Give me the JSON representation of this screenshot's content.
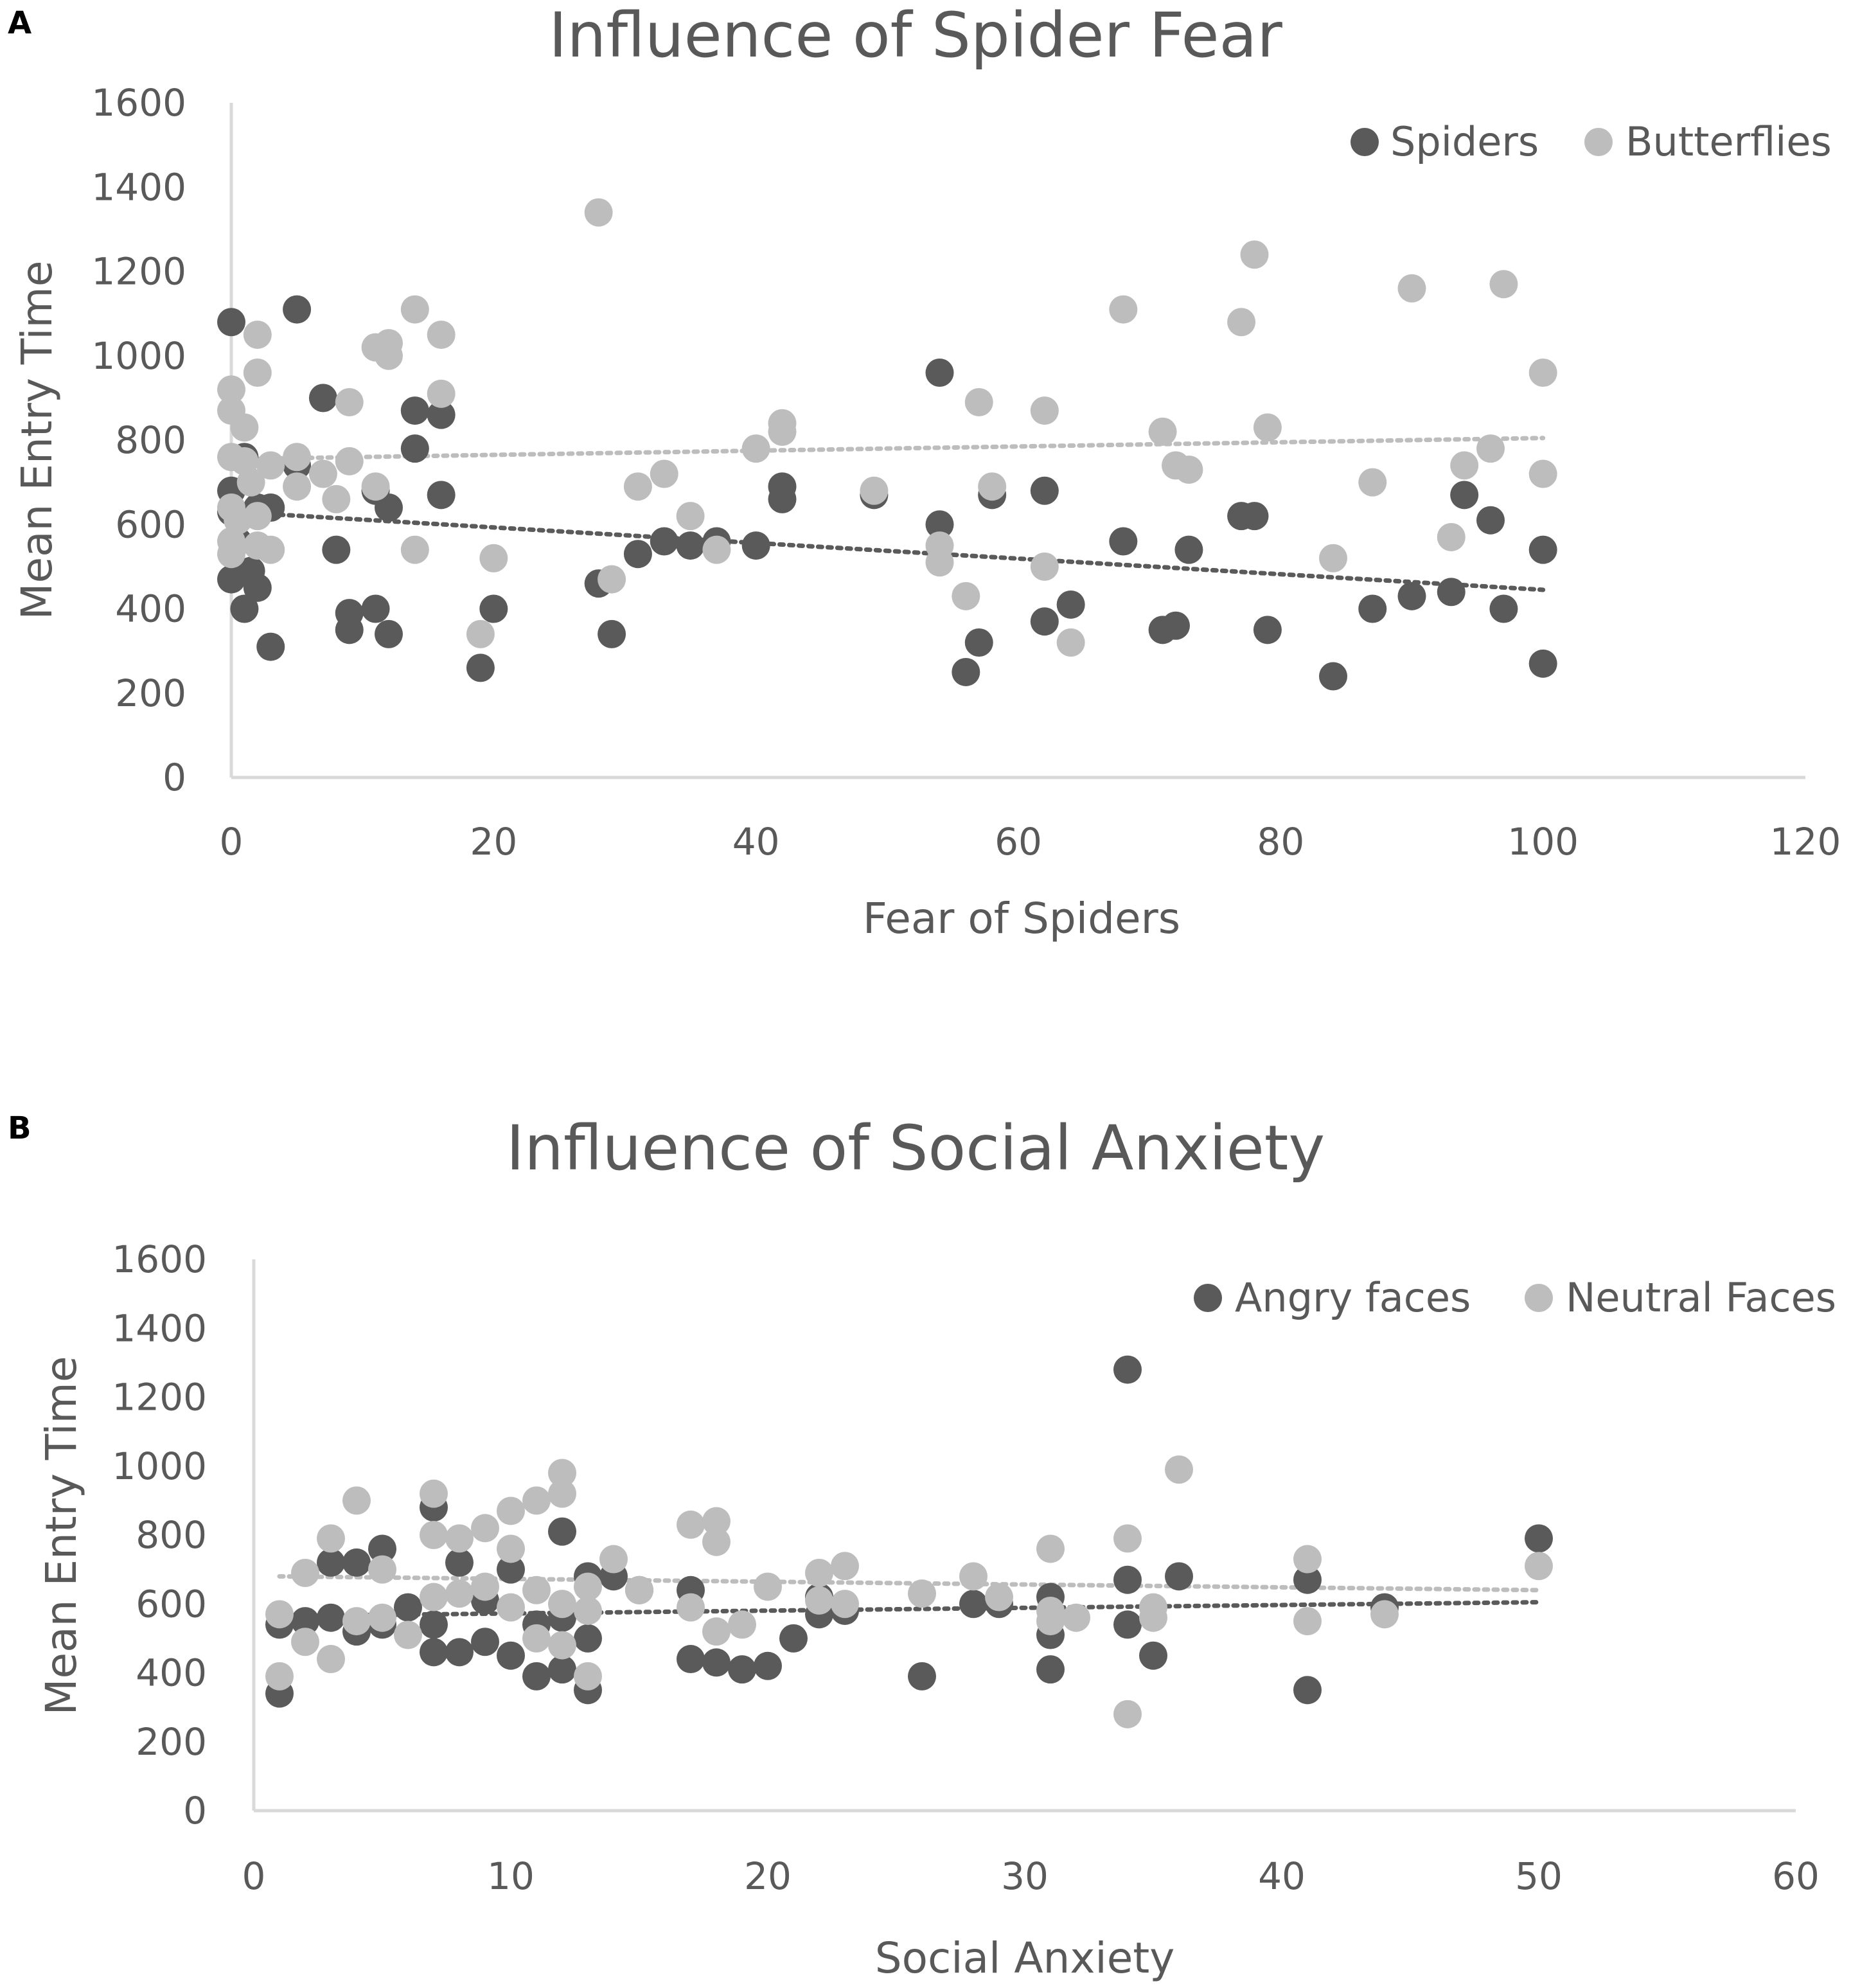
{
  "colors": {
    "dark": "#5a5a5a",
    "light": "#bdbdbd",
    "axis": "#d9d9d9",
    "text": "#595959",
    "panel_label": "#000000"
  },
  "chart_data": [
    {
      "panel_label": "A",
      "type": "scatter",
      "title": "Influence of Spider Fear",
      "xlabel": "Fear of Spiders",
      "ylabel": "Mean Entry Time",
      "xlim": [
        0,
        120
      ],
      "ylim": [
        0,
        1600
      ],
      "xticks": [
        0,
        20,
        40,
        60,
        80,
        100,
        120
      ],
      "yticks": [
        0,
        200,
        400,
        600,
        800,
        1000,
        1200,
        1400,
        1600
      ],
      "grid": false,
      "legend_position": "top-right",
      "series": [
        {
          "name": "Spiders",
          "color_key": "dark",
          "trendline": [
            [
              0,
              630
            ],
            [
              100,
              445
            ]
          ],
          "points": [
            [
              0,
              1080
            ],
            [
              0,
              680
            ],
            [
              0,
              630
            ],
            [
              0,
              470
            ],
            [
              0.5,
              560
            ],
            [
              1,
              760
            ],
            [
              1,
              400
            ],
            [
              1.5,
              490
            ],
            [
              2,
              450
            ],
            [
              2,
              640
            ],
            [
              3,
              310
            ],
            [
              3,
              640
            ],
            [
              5,
              1110
            ],
            [
              5,
              740
            ],
            [
              7,
              900
            ],
            [
              8,
              540
            ],
            [
              9,
              390
            ],
            [
              9,
              350
            ],
            [
              11,
              400
            ],
            [
              11,
              680
            ],
            [
              12,
              640
            ],
            [
              12,
              340
            ],
            [
              14,
              870
            ],
            [
              14,
              780
            ],
            [
              16,
              860
            ],
            [
              16,
              670
            ],
            [
              19,
              260
            ],
            [
              20,
              400
            ],
            [
              28,
              460
            ],
            [
              29,
              340
            ],
            [
              31,
              530
            ],
            [
              33,
              560
            ],
            [
              35,
              550
            ],
            [
              37,
              560
            ],
            [
              40,
              550
            ],
            [
              42,
              690
            ],
            [
              42,
              660
            ],
            [
              49,
              670
            ],
            [
              54,
              960
            ],
            [
              54,
              600
            ],
            [
              56,
              250
            ],
            [
              57,
              320
            ],
            [
              58,
              670
            ],
            [
              62,
              680
            ],
            [
              62,
              370
            ],
            [
              64,
              410
            ],
            [
              68,
              560
            ],
            [
              71,
              350
            ],
            [
              72,
              360
            ],
            [
              73,
              540
            ],
            [
              77,
              620
            ],
            [
              78,
              620
            ],
            [
              79,
              350
            ],
            [
              84,
              240
            ],
            [
              87,
              400
            ],
            [
              90,
              430
            ],
            [
              93,
              440
            ],
            [
              94,
              670
            ],
            [
              96,
              610
            ],
            [
              97,
              400
            ],
            [
              100,
              540
            ],
            [
              100,
              270
            ]
          ]
        },
        {
          "name": "Butterflies",
          "color_key": "light",
          "trendline": [
            [
              0,
              755
            ],
            [
              100,
              805
            ]
          ],
          "points": [
            [
              0,
              920
            ],
            [
              0,
              870
            ],
            [
              0,
              760
            ],
            [
              0,
              640
            ],
            [
              0,
              560
            ],
            [
              0,
              530
            ],
            [
              0.5,
              610
            ],
            [
              1,
              830
            ],
            [
              1,
              750
            ],
            [
              1.5,
              700
            ],
            [
              2,
              1050
            ],
            [
              2,
              960
            ],
            [
              2,
              620
            ],
            [
              2,
              550
            ],
            [
              3,
              540
            ],
            [
              3,
              740
            ],
            [
              5,
              760
            ],
            [
              5,
              690
            ],
            [
              7,
              720
            ],
            [
              8,
              660
            ],
            [
              9,
              890
            ],
            [
              9,
              750
            ],
            [
              11,
              1020
            ],
            [
              11,
              690
            ],
            [
              12,
              1030
            ],
            [
              12,
              1000
            ],
            [
              14,
              1110
            ],
            [
              14,
              540
            ],
            [
              16,
              1050
            ],
            [
              16,
              910
            ],
            [
              19,
              340
            ],
            [
              20,
              520
            ],
            [
              28,
              1340
            ],
            [
              29,
              470
            ],
            [
              31,
              690
            ],
            [
              33,
              720
            ],
            [
              35,
              620
            ],
            [
              37,
              540
            ],
            [
              40,
              780
            ],
            [
              42,
              840
            ],
            [
              42,
              820
            ],
            [
              49,
              680
            ],
            [
              54,
              550
            ],
            [
              54,
              510
            ],
            [
              56,
              430
            ],
            [
              57,
              890
            ],
            [
              58,
              690
            ],
            [
              62,
              870
            ],
            [
              62,
              500
            ],
            [
              64,
              320
            ],
            [
              68,
              1110
            ],
            [
              71,
              820
            ],
            [
              72,
              740
            ],
            [
              73,
              730
            ],
            [
              77,
              1080
            ],
            [
              78,
              1240
            ],
            [
              79,
              830
            ],
            [
              84,
              520
            ],
            [
              87,
              700
            ],
            [
              90,
              1160
            ],
            [
              93,
              570
            ],
            [
              94,
              740
            ],
            [
              96,
              780
            ],
            [
              97,
              1170
            ],
            [
              100,
              960
            ],
            [
              100,
              720
            ]
          ]
        }
      ]
    },
    {
      "panel_label": "B",
      "type": "scatter",
      "title": "Influence of Social Anxiety",
      "xlabel": "Social Anxiety",
      "ylabel": "Mean Entry Time",
      "xlim": [
        0,
        60
      ],
      "ylim": [
        0,
        1600
      ],
      "xticks": [
        0,
        10,
        20,
        30,
        40,
        50,
        60
      ],
      "yticks": [
        0,
        200,
        400,
        600,
        800,
        1000,
        1200,
        1400,
        1600
      ],
      "grid": false,
      "legend_position": "top-right",
      "series": [
        {
          "name": "Angry faces",
          "color_key": "dark",
          "trendline": [
            [
              1,
              565
            ],
            [
              50,
              605
            ]
          ],
          "points": [
            [
              1,
              340
            ],
            [
              1,
              540
            ],
            [
              2,
              550
            ],
            [
              3,
              720
            ],
            [
              3,
              560
            ],
            [
              4,
              520
            ],
            [
              4,
              720
            ],
            [
              5,
              760
            ],
            [
              5,
              540
            ],
            [
              6,
              590
            ],
            [
              7,
              880
            ],
            [
              7,
              540
            ],
            [
              7,
              460
            ],
            [
              8,
              460
            ],
            [
              8,
              720
            ],
            [
              9,
              610
            ],
            [
              9,
              490
            ],
            [
              10,
              700
            ],
            [
              10,
              450
            ],
            [
              11,
              390
            ],
            [
              11,
              540
            ],
            [
              12,
              410
            ],
            [
              12,
              810
            ],
            [
              12,
              560
            ],
            [
              13,
              350
            ],
            [
              13,
              500
            ],
            [
              13,
              680
            ],
            [
              14,
              680
            ],
            [
              15,
              640
            ],
            [
              17,
              640
            ],
            [
              17,
              440
            ],
            [
              18,
              430
            ],
            [
              19,
              410
            ],
            [
              20,
              420
            ],
            [
              21,
              500
            ],
            [
              22,
              570
            ],
            [
              22,
              620
            ],
            [
              23,
              580
            ],
            [
              26,
              390
            ],
            [
              28,
              600
            ],
            [
              29,
              600
            ],
            [
              31,
              510
            ],
            [
              31,
              410
            ],
            [
              31,
              620
            ],
            [
              34,
              1280
            ],
            [
              34,
              540
            ],
            [
              34,
              670
            ],
            [
              35,
              450
            ],
            [
              36,
              680
            ],
            [
              41,
              350
            ],
            [
              41,
              670
            ],
            [
              44,
              590
            ],
            [
              50,
              790
            ]
          ]
        },
        {
          "name": "Neutral Faces",
          "color_key": "light",
          "trendline": [
            [
              1,
              680
            ],
            [
              50,
              640
            ]
          ],
          "points": [
            [
              1,
              390
            ],
            [
              1,
              570
            ],
            [
              2,
              690
            ],
            [
              2,
              490
            ],
            [
              3,
              440
            ],
            [
              3,
              790
            ],
            [
              4,
              900
            ],
            [
              4,
              550
            ],
            [
              5,
              700
            ],
            [
              5,
              560
            ],
            [
              6,
              510
            ],
            [
              7,
              920
            ],
            [
              7,
              800
            ],
            [
              7,
              620
            ],
            [
              8,
              790
            ],
            [
              8,
              630
            ],
            [
              9,
              820
            ],
            [
              9,
              650
            ],
            [
              10,
              870
            ],
            [
              10,
              760
            ],
            [
              10,
              590
            ],
            [
              11,
              900
            ],
            [
              11,
              640
            ],
            [
              11,
              500
            ],
            [
              12,
              980
            ],
            [
              12,
              920
            ],
            [
              12,
              600
            ],
            [
              12,
              480
            ],
            [
              13,
              390
            ],
            [
              13,
              650
            ],
            [
              13,
              580
            ],
            [
              14,
              730
            ],
            [
              15,
              640
            ],
            [
              17,
              830
            ],
            [
              17,
              590
            ],
            [
              18,
              840
            ],
            [
              18,
              780
            ],
            [
              18,
              520
            ],
            [
              19,
              540
            ],
            [
              20,
              650
            ],
            [
              22,
              690
            ],
            [
              22,
              610
            ],
            [
              23,
              710
            ],
            [
              23,
              600
            ],
            [
              26,
              630
            ],
            [
              28,
              680
            ],
            [
              29,
              620
            ],
            [
              31,
              760
            ],
            [
              31,
              580
            ],
            [
              31,
              550
            ],
            [
              32,
              560
            ],
            [
              34,
              790
            ],
            [
              34,
              280
            ],
            [
              35,
              590
            ],
            [
              35,
              560
            ],
            [
              36,
              990
            ],
            [
              41,
              730
            ],
            [
              41,
              550
            ],
            [
              44,
              570
            ],
            [
              50,
              710
            ]
          ]
        }
      ]
    }
  ]
}
